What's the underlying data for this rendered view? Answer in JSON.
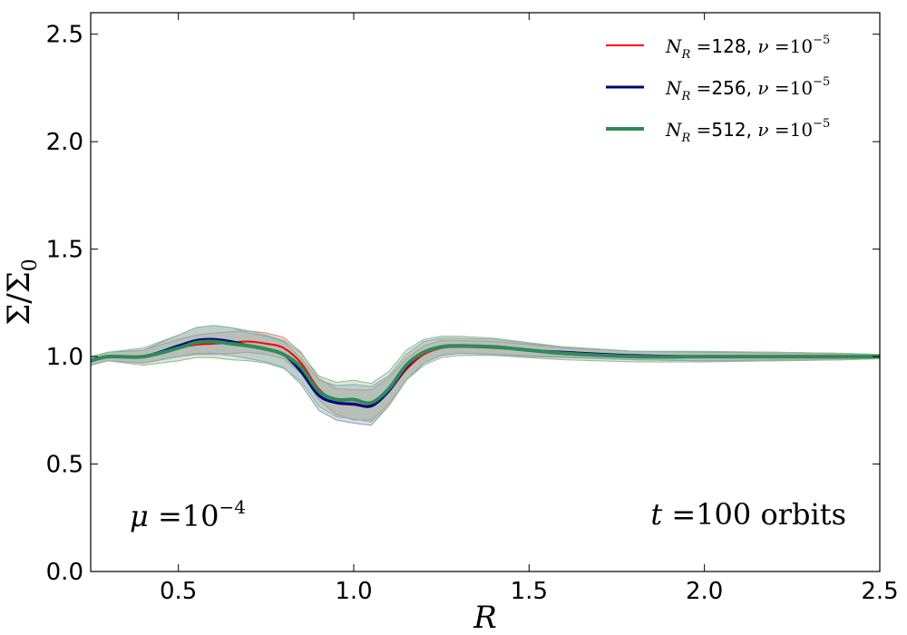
{
  "chart_data": {
    "type": "line",
    "title": "",
    "xlabel": "R",
    "ylabel": "Σ/Σ₀",
    "xlim": [
      0.25,
      2.5
    ],
    "ylim": [
      0.0,
      2.6
    ],
    "xticks": [
      "0.5",
      "1.0",
      "1.5",
      "2.0",
      "2.5"
    ],
    "yticks": [
      "0.0",
      "0.5",
      "1.0",
      "1.5",
      "2.0",
      "2.5"
    ],
    "legend_position": "top-right",
    "grid": false,
    "annotations": {
      "mass_ratio": "μ = 10⁻⁴",
      "time": "t = 100 orbits"
    },
    "series": [
      {
        "name": "N_R = 128, ν = 10⁻⁵",
        "legend_label": {
          "sym": "N",
          "sub": "R",
          "eq": " =",
          "num": "128, ",
          "nu": "ν",
          "eq2": " =",
          "pow": "10",
          "exp": "−5"
        },
        "color": "#ff0000",
        "band_color": "#d98880",
        "width": 2,
        "x": [
          0.25,
          0.3,
          0.4,
          0.5,
          0.55,
          0.6,
          0.65,
          0.7,
          0.75,
          0.8,
          0.85,
          0.9,
          0.95,
          1.0,
          1.05,
          1.1,
          1.15,
          1.2,
          1.25,
          1.3,
          1.4,
          1.5,
          1.6,
          1.8,
          2.0,
          2.2,
          2.4,
          2.5
        ],
        "y": [
          0.98,
          1.0,
          1.0,
          1.04,
          1.055,
          1.06,
          1.065,
          1.07,
          1.06,
          1.04,
          0.97,
          0.85,
          0.79,
          0.775,
          0.775,
          0.84,
          0.94,
          1.01,
          1.04,
          1.045,
          1.04,
          1.03,
          1.02,
          1.005,
          1.0,
          1.0,
          1.0,
          1.0
        ],
        "band": [
          0.02,
          0.02,
          0.03,
          0.04,
          0.045,
          0.05,
          0.05,
          0.05,
          0.05,
          0.05,
          0.05,
          0.05,
          0.06,
          0.07,
          0.07,
          0.06,
          0.05,
          0.04,
          0.035,
          0.03,
          0.03,
          0.025,
          0.02,
          0.02,
          0.02,
          0.015,
          0.01,
          0.01
        ]
      },
      {
        "name": "N_R = 256, ν = 10⁻⁵",
        "legend_label": {
          "sym": "N",
          "sub": "R",
          "eq": " =",
          "num": "256, ",
          "nu": "ν",
          "eq2": " =",
          "pow": "10",
          "exp": "−5"
        },
        "color": "#000080",
        "band_color": "#8a9ac8",
        "width": 3,
        "x": [
          0.25,
          0.3,
          0.4,
          0.5,
          0.55,
          0.6,
          0.65,
          0.7,
          0.75,
          0.8,
          0.85,
          0.9,
          0.95,
          1.0,
          1.05,
          1.1,
          1.15,
          1.2,
          1.25,
          1.3,
          1.4,
          1.5,
          1.6,
          1.8,
          2.0,
          2.2,
          2.4,
          2.5
        ],
        "y": [
          0.98,
          1.0,
          1.0,
          1.05,
          1.075,
          1.08,
          1.07,
          1.05,
          1.035,
          1.01,
          0.93,
          0.82,
          0.785,
          0.78,
          0.77,
          0.84,
          0.95,
          1.02,
          1.045,
          1.05,
          1.045,
          1.03,
          1.02,
          1.005,
          1.0,
          1.0,
          1.0,
          1.0
        ],
        "band": [
          0.02,
          0.02,
          0.03,
          0.05,
          0.06,
          0.065,
          0.065,
          0.06,
          0.06,
          0.06,
          0.06,
          0.07,
          0.08,
          0.09,
          0.09,
          0.07,
          0.06,
          0.05,
          0.04,
          0.035,
          0.035,
          0.03,
          0.025,
          0.02,
          0.02,
          0.02,
          0.015,
          0.01
        ]
      },
      {
        "name": "N_R = 512, ν = 10⁻⁵",
        "legend_label": {
          "sym": "N",
          "sub": "R",
          "eq": " =",
          "num": "512, ",
          "nu": "ν",
          "eq2": " =",
          "pow": "10",
          "exp": "−5"
        },
        "color": "#2e8b57",
        "band_color": "#8fbc8f",
        "width": 4,
        "x": [
          0.25,
          0.3,
          0.4,
          0.5,
          0.55,
          0.6,
          0.65,
          0.7,
          0.75,
          0.8,
          0.85,
          0.9,
          0.95,
          1.0,
          1.05,
          1.1,
          1.15,
          1.2,
          1.25,
          1.3,
          1.4,
          1.5,
          1.6,
          1.8,
          2.0,
          2.2,
          2.4,
          2.5
        ],
        "y": [
          0.98,
          1.0,
          1.0,
          1.04,
          1.065,
          1.07,
          1.06,
          1.05,
          1.035,
          1.01,
          0.95,
          0.84,
          0.8,
          0.8,
          0.785,
          0.85,
          0.96,
          1.02,
          1.045,
          1.05,
          1.045,
          1.03,
          1.015,
          1.0,
          1.0,
          1.0,
          1.0,
          1.0
        ],
        "band": [
          0.02,
          0.02,
          0.04,
          0.06,
          0.07,
          0.075,
          0.075,
          0.07,
          0.065,
          0.065,
          0.065,
          0.07,
          0.08,
          0.09,
          0.09,
          0.08,
          0.07,
          0.06,
          0.05,
          0.045,
          0.04,
          0.035,
          0.03,
          0.025,
          0.025,
          0.02,
          0.015,
          0.01
        ]
      }
    ]
  }
}
